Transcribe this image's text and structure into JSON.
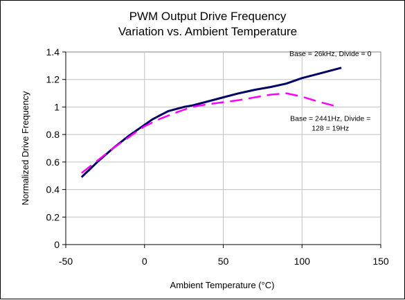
{
  "chart_data": {
    "type": "line",
    "title": [
      "PWM Output Drive Frequency",
      "Variation vs. Ambient Temperature"
    ],
    "xlabel": "Ambient Temperature (°C)",
    "ylabel": "Normalized Drive Frequency",
    "xlim": [
      -50,
      150
    ],
    "ylim": [
      0,
      1.4
    ],
    "xticks": [
      -50,
      0,
      50,
      100,
      150
    ],
    "yticks": [
      0,
      0.2,
      0.4,
      0.6,
      0.8,
      1,
      1.2,
      1.4
    ],
    "xtick_labels": [
      "-50",
      "0",
      "50",
      "100",
      "150"
    ],
    "ytick_labels": [
      "0",
      "0.2",
      "0.4",
      "0.6",
      "0.8",
      "1",
      "1.2",
      "1.4"
    ],
    "grid": true,
    "series": [
      {
        "name": "Base = 26kHz, Divide = 0",
        "color": "#000066",
        "style": "solid",
        "x": [
          -40,
          -30,
          -20,
          -10,
          0,
          5,
          10,
          15,
          20,
          25,
          30,
          40,
          50,
          60,
          70,
          80,
          90,
          100,
          110,
          125
        ],
        "y": [
          0.49,
          0.6,
          0.7,
          0.79,
          0.87,
          0.91,
          0.94,
          0.97,
          0.985,
          1.0,
          1.01,
          1.04,
          1.07,
          1.1,
          1.125,
          1.145,
          1.17,
          1.21,
          1.24,
          1.285
        ]
      },
      {
        "name": "Base = 2441Hz, Divide = 128 = 19Hz",
        "color": "#FF00FF",
        "style": "dashed",
        "x": [
          -40,
          -30,
          -20,
          -10,
          0,
          10,
          20,
          30,
          40,
          50,
          60,
          70,
          80,
          90,
          100,
          110,
          120
        ],
        "y": [
          0.52,
          0.61,
          0.7,
          0.78,
          0.86,
          0.915,
          0.96,
          1.0,
          1.02,
          1.035,
          1.05,
          1.07,
          1.09,
          1.1,
          1.075,
          1.04,
          1.01
        ]
      }
    ],
    "annotations": [
      {
        "lines": [
          "Base = 26kHz, Divide = 0"
        ],
        "x": 118,
        "y": 1.37
      },
      {
        "lines": [
          "Base = 2441Hz, Divide =",
          "128 = 19Hz"
        ],
        "x": 118,
        "y": 0.9
      }
    ]
  }
}
